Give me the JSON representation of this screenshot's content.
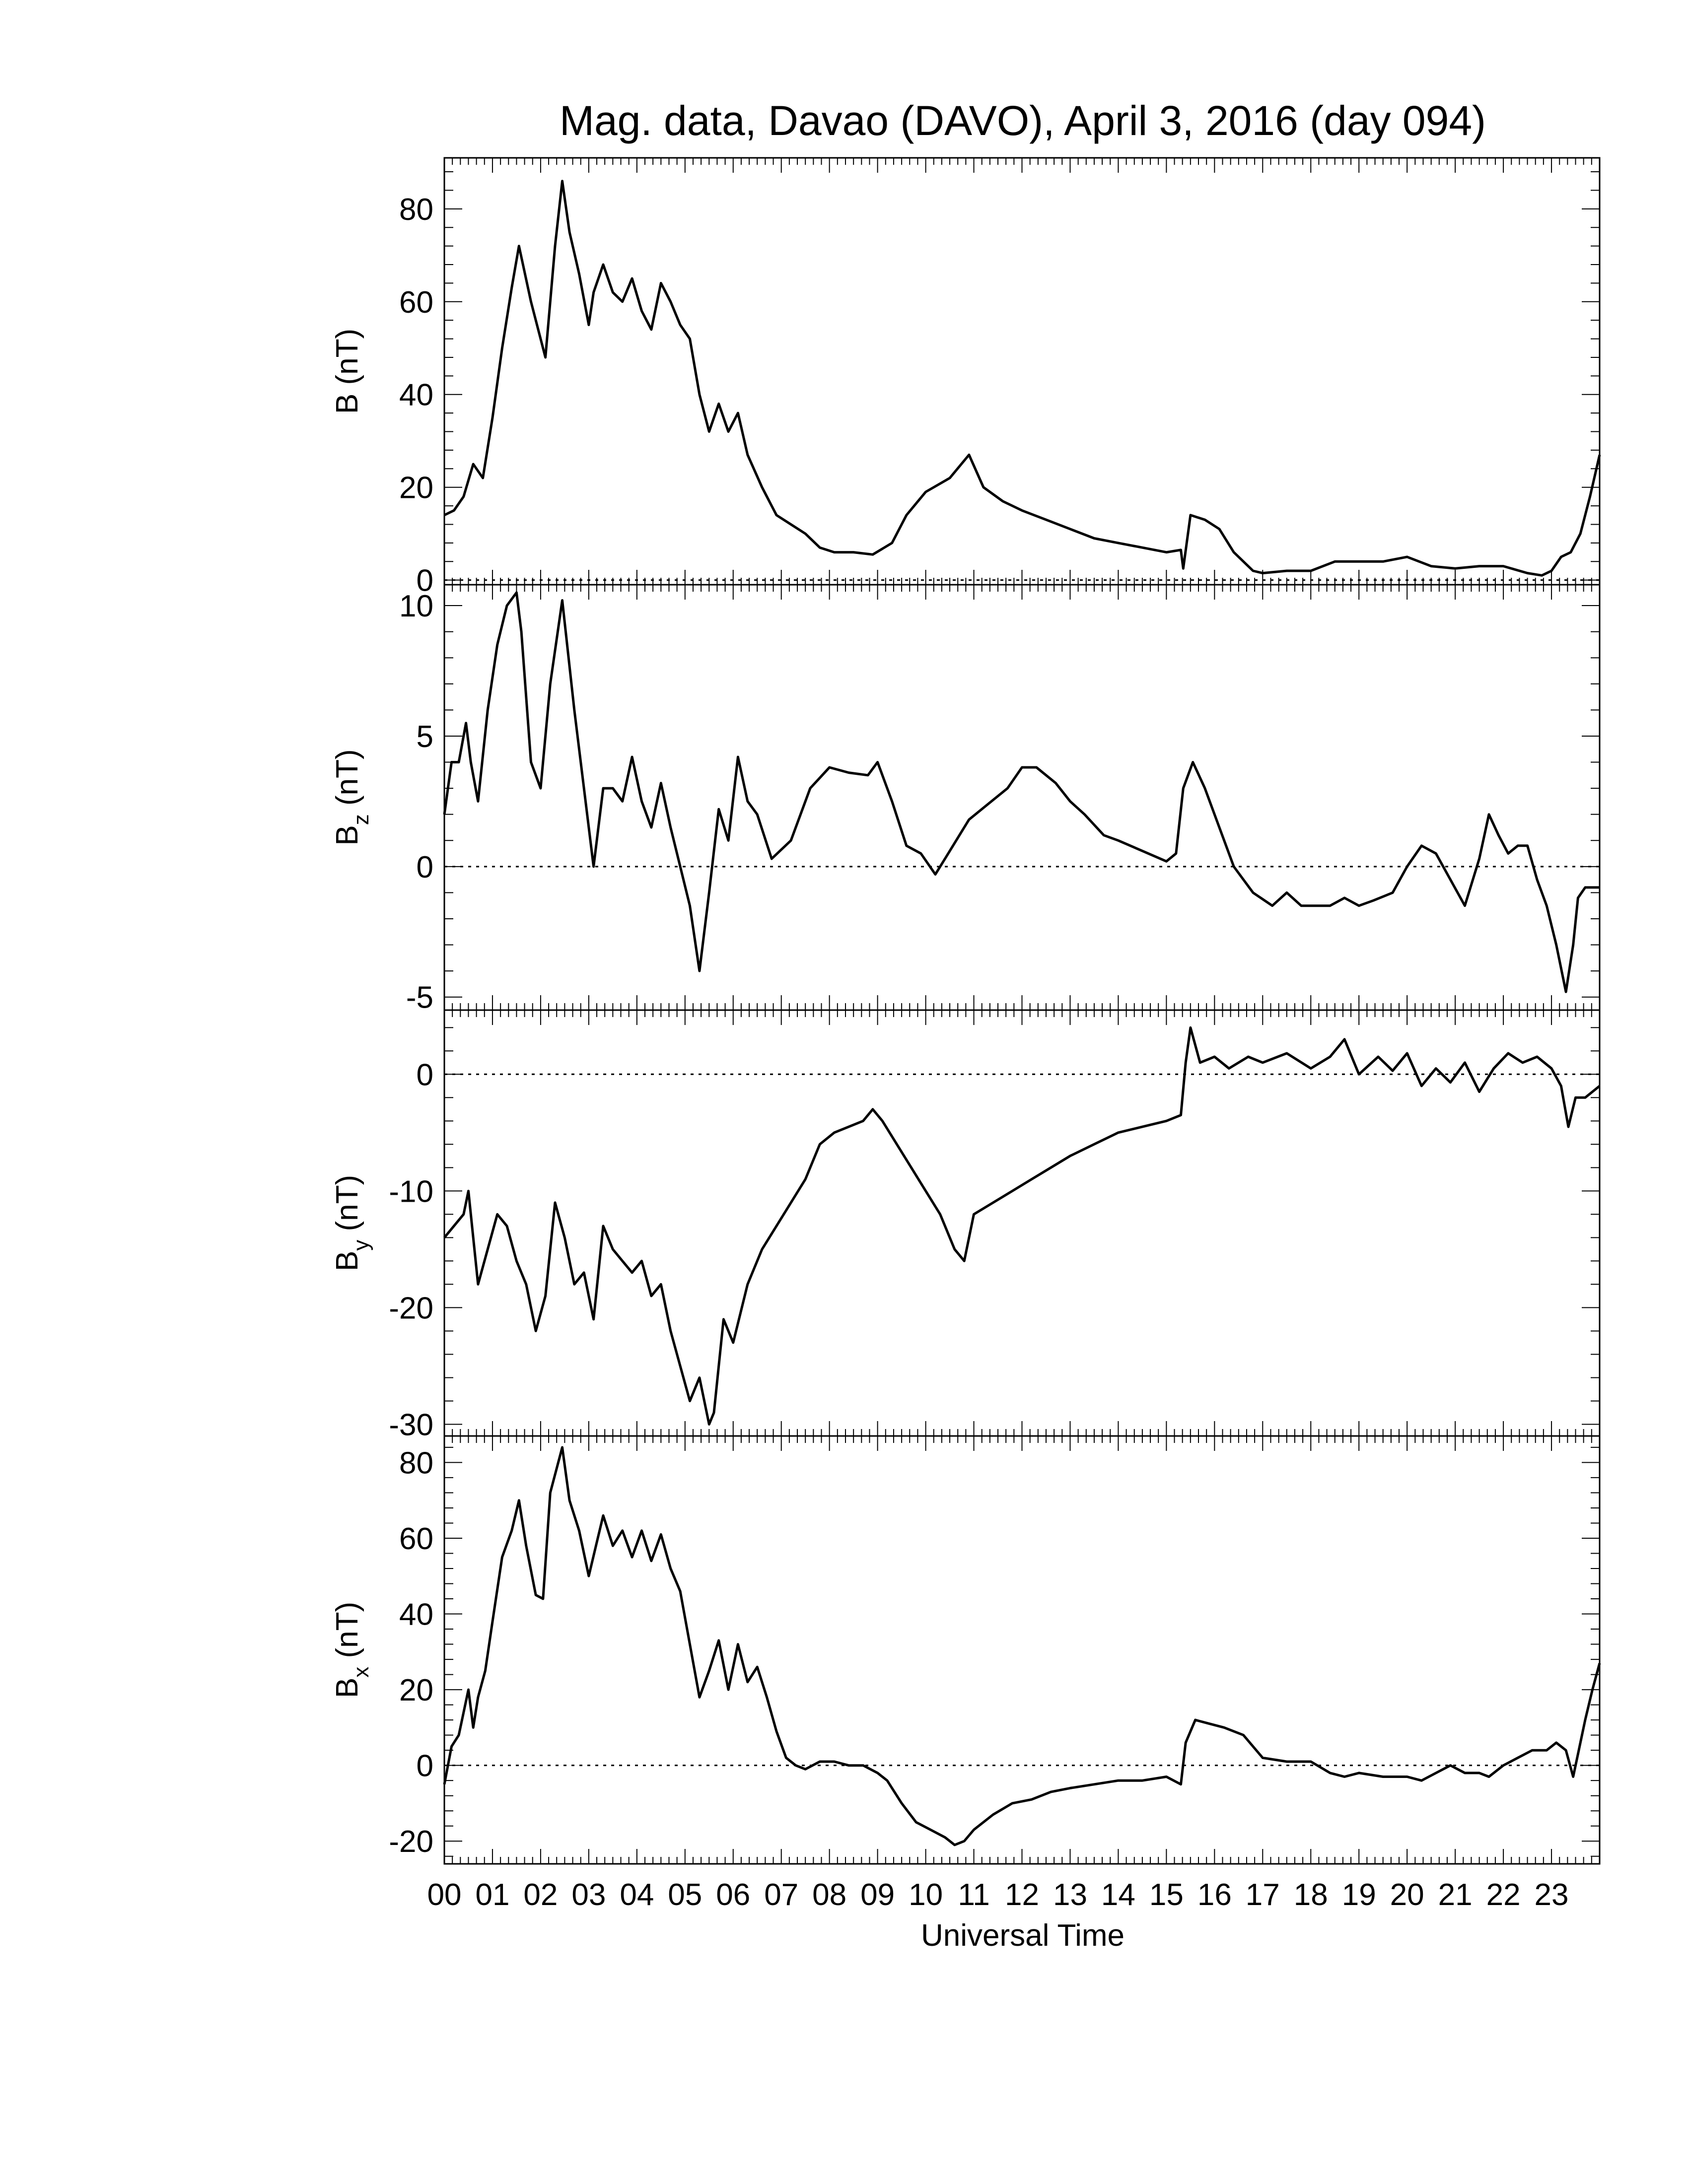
{
  "figure": {
    "title": "Mag. data, Davao (DAVO), April 3, 2016 (day 094)",
    "xlabel": "Universal Time",
    "x_tick_labels": [
      "00",
      "01",
      "02",
      "03",
      "04",
      "05",
      "06",
      "07",
      "08",
      "09",
      "10",
      "11",
      "12",
      "13",
      "14",
      "15",
      "16",
      "17",
      "18",
      "19",
      "20",
      "21",
      "22",
      "23"
    ]
  },
  "chart_data": [
    {
      "type": "line",
      "id": "B",
      "ylabel_main": "B",
      "ylabel_sub": "",
      "ylabel_unit": "(nT)",
      "ylim": [
        -1,
        91
      ],
      "yticks": [
        0,
        20,
        40,
        60,
        80
      ],
      "ytick_labels": [
        "0",
        "20",
        "40",
        "60",
        "80"
      ],
      "zero_line": true,
      "xlim": [
        0,
        24
      ],
      "x": [
        0,
        0.2,
        0.4,
        0.6,
        0.8,
        1.0,
        1.2,
        1.4,
        1.55,
        1.8,
        2.0,
        2.1,
        2.3,
        2.45,
        2.6,
        2.8,
        3.0,
        3.1,
        3.3,
        3.5,
        3.7,
        3.9,
        4.1,
        4.3,
        4.5,
        4.7,
        4.9,
        5.1,
        5.3,
        5.5,
        5.7,
        5.9,
        6.1,
        6.3,
        6.6,
        6.9,
        7.2,
        7.5,
        7.8,
        8.1,
        8.5,
        8.9,
        9.3,
        9.6,
        10.0,
        10.5,
        10.9,
        11.2,
        11.6,
        12.0,
        12.5,
        13.0,
        13.5,
        14.0,
        14.5,
        15.0,
        15.3,
        15.35,
        15.5,
        15.8,
        16.1,
        16.4,
        16.8,
        17.0,
        17.5,
        18.0,
        18.5,
        19.0,
        19.5,
        20.0,
        20.5,
        21.0,
        21.5,
        22.0,
        22.5,
        22.8,
        23.0,
        23.2,
        23.4,
        23.6,
        23.8,
        24.0
      ],
      "values": [
        14,
        15,
        18,
        25,
        22,
        35,
        50,
        63,
        72,
        60,
        52,
        48,
        72,
        86,
        75,
        66,
        55,
        62,
        68,
        62,
        60,
        65,
        58,
        54,
        64,
        60,
        55,
        52,
        40,
        32,
        38,
        32,
        36,
        27,
        20,
        14,
        12,
        10,
        7,
        6,
        6,
        5.5,
        8,
        14,
        19,
        22,
        27,
        20,
        17,
        15,
        13,
        11,
        9,
        8,
        7,
        6,
        6.5,
        2.5,
        14,
        13,
        11,
        6,
        2,
        1.5,
        2,
        2,
        4,
        4,
        4,
        5,
        3,
        2.5,
        3,
        3,
        1.5,
        1,
        2,
        5,
        6,
        10,
        18,
        27
      ]
    },
    {
      "type": "line",
      "id": "Bz",
      "ylabel_main": "B",
      "ylabel_sub": "z",
      "ylabel_unit": "(nT)",
      "ylim": [
        -5.5,
        10.8
      ],
      "yticks": [
        -5,
        0,
        5,
        10
      ],
      "ytick_labels": [
        "-5",
        "0",
        "5",
        "10"
      ],
      "zero_line": true,
      "xlim": [
        0,
        24
      ],
      "x": [
        0,
        0.15,
        0.3,
        0.45,
        0.55,
        0.7,
        0.9,
        1.1,
        1.3,
        1.5,
        1.6,
        1.8,
        2.0,
        2.2,
        2.45,
        2.7,
        2.9,
        3.1,
        3.3,
        3.5,
        3.7,
        3.9,
        4.1,
        4.3,
        4.5,
        4.7,
        4.9,
        5.1,
        5.3,
        5.5,
        5.7,
        5.9,
        6.1,
        6.3,
        6.5,
        6.8,
        7.2,
        7.6,
        8.0,
        8.4,
        8.8,
        9.0,
        9.3,
        9.6,
        9.9,
        10.2,
        10.5,
        10.9,
        11.3,
        11.7,
        12.0,
        12.3,
        12.7,
        13.0,
        13.3,
        13.7,
        14.0,
        14.5,
        15.0,
        15.2,
        15.35,
        15.55,
        15.8,
        16.1,
        16.4,
        16.8,
        17.2,
        17.5,
        17.8,
        18.1,
        18.4,
        18.7,
        19.0,
        19.3,
        19.7,
        20.0,
        20.3,
        20.6,
        20.9,
        21.2,
        21.5,
        21.7,
        21.9,
        22.1,
        22.3,
        22.5,
        22.7,
        22.9,
        23.1,
        23.3,
        23.45,
        23.55,
        23.7,
        23.85,
        24.0
      ],
      "values": [
        2,
        4,
        4,
        5.5,
        4,
        2.5,
        6,
        8.5,
        10,
        10.5,
        9,
        4,
        3,
        7,
        10.2,
        6,
        3,
        0,
        3,
        3,
        2.5,
        4.2,
        2.5,
        1.5,
        3.2,
        1.5,
        0,
        -1.5,
        -4,
        -1,
        2.2,
        1,
        4.2,
        2.5,
        2,
        0.3,
        1,
        3,
        3.8,
        3.6,
        3.5,
        4,
        2.5,
        0.8,
        0.5,
        -0.3,
        0.6,
        1.8,
        2.4,
        3,
        3.8,
        3.8,
        3.2,
        2.5,
        2,
        1.2,
        1,
        0.6,
        0.2,
        0.5,
        3,
        4,
        3,
        1.5,
        0,
        -1,
        -1.5,
        -1,
        -1.5,
        -1.5,
        -1.5,
        -1.2,
        -1.5,
        -1.3,
        -1,
        0,
        0.8,
        0.5,
        -0.5,
        -1.5,
        0.3,
        2,
        1.2,
        0.5,
        0.8,
        0.8,
        -0.5,
        -1.5,
        -3,
        -4.8,
        -3,
        -1.2,
        -0.8,
        -0.8,
        -0.8
      ]
    },
    {
      "type": "line",
      "id": "By",
      "ylabel_main": "B",
      "ylabel_sub": "y",
      "ylabel_unit": "(nT)",
      "ylim": [
        -31,
        5.5
      ],
      "yticks": [
        -30,
        -20,
        -10,
        0
      ],
      "ytick_labels": [
        "-30",
        "-20",
        "-10",
        "0"
      ],
      "zero_line": true,
      "xlim": [
        0,
        24
      ],
      "x": [
        0,
        0.2,
        0.4,
        0.5,
        0.7,
        0.9,
        1.1,
        1.3,
        1.5,
        1.7,
        1.9,
        2.1,
        2.3,
        2.5,
        2.7,
        2.9,
        3.1,
        3.3,
        3.5,
        3.7,
        3.9,
        4.1,
        4.3,
        4.5,
        4.7,
        4.9,
        5.1,
        5.3,
        5.5,
        5.6,
        5.8,
        6.0,
        6.3,
        6.6,
        6.9,
        7.2,
        7.5,
        7.8,
        8.1,
        8.4,
        8.7,
        8.9,
        9.1,
        9.4,
        9.7,
        10.0,
        10.3,
        10.6,
        10.8,
        11.0,
        11.4,
        11.8,
        12.2,
        12.6,
        13.0,
        13.5,
        14.0,
        14.5,
        15.0,
        15.3,
        15.4,
        15.5,
        15.7,
        16.0,
        16.3,
        16.7,
        17.0,
        17.5,
        18.0,
        18.4,
        18.7,
        19.0,
        19.4,
        19.7,
        20.0,
        20.3,
        20.6,
        20.9,
        21.2,
        21.5,
        21.8,
        22.1,
        22.4,
        22.7,
        23.0,
        23.2,
        23.35,
        23.5,
        23.7,
        24.0
      ],
      "values": [
        -14,
        -13,
        -12,
        -10,
        -18,
        -15,
        -12,
        -13,
        -16,
        -18,
        -22,
        -19,
        -11,
        -14,
        -18,
        -17,
        -21,
        -13,
        -15,
        -16,
        -17,
        -16,
        -19,
        -18,
        -22,
        -25,
        -28,
        -26,
        -30,
        -29,
        -21,
        -23,
        -18,
        -15,
        -13,
        -11,
        -9,
        -6,
        -5,
        -4.5,
        -4,
        -3,
        -4,
        -6,
        -8,
        -10,
        -12,
        -15,
        -16,
        -12,
        -11,
        -10,
        -9,
        -8,
        -7,
        -6,
        -5,
        -4.5,
        -4,
        -3.5,
        1,
        4,
        1,
        1.5,
        0.5,
        1.5,
        1,
        1.8,
        0.5,
        1.5,
        3,
        0,
        1.5,
        0.3,
        1.8,
        -1,
        0.5,
        -0.7,
        1,
        -1.5,
        0.5,
        1.8,
        1,
        1.5,
        0.5,
        -1,
        -4.5,
        -2,
        -2,
        -1
      ]
    },
    {
      "type": "line",
      "id": "Bx",
      "ylabel_main": "B",
      "ylabel_sub": "x",
      "ylabel_unit": "(nT)",
      "ylim": [
        -26,
        87
      ],
      "yticks": [
        -20,
        0,
        20,
        40,
        60,
        80
      ],
      "ytick_labels": [
        "-20",
        "0",
        "20",
        "40",
        "60",
        "80"
      ],
      "zero_line": true,
      "xlim": [
        0,
        24
      ],
      "x": [
        0,
        0.15,
        0.3,
        0.5,
        0.6,
        0.7,
        0.85,
        1.0,
        1.2,
        1.4,
        1.55,
        1.7,
        1.9,
        2.05,
        2.2,
        2.45,
        2.6,
        2.8,
        3.0,
        3.15,
        3.3,
        3.5,
        3.7,
        3.9,
        4.1,
        4.3,
        4.5,
        4.7,
        4.9,
        5.1,
        5.3,
        5.5,
        5.7,
        5.9,
        6.1,
        6.3,
        6.5,
        6.7,
        6.9,
        7.1,
        7.3,
        7.5,
        7.8,
        8.1,
        8.4,
        8.7,
        9.0,
        9.2,
        9.5,
        9.8,
        10.1,
        10.4,
        10.6,
        10.8,
        11.0,
        11.4,
        11.8,
        12.2,
        12.6,
        13.0,
        13.5,
        14.0,
        14.5,
        15.0,
        15.3,
        15.4,
        15.6,
        15.9,
        16.2,
        16.6,
        17.0,
        17.5,
        18.0,
        18.4,
        18.7,
        19.0,
        19.5,
        20.0,
        20.3,
        20.6,
        20.9,
        21.2,
        21.5,
        21.7,
        22.0,
        22.3,
        22.6,
        22.9,
        23.1,
        23.3,
        23.45,
        23.55,
        23.7,
        23.85,
        24.0
      ],
      "values": [
        -5,
        5,
        8,
        20,
        10,
        18,
        25,
        38,
        55,
        62,
        70,
        58,
        45,
        44,
        72,
        84,
        70,
        62,
        50,
        58,
        66,
        58,
        62,
        55,
        62,
        54,
        61,
        52,
        46,
        32,
        18,
        25,
        33,
        20,
        32,
        22,
        26,
        18,
        9,
        2,
        0,
        -1,
        1,
        1,
        0,
        0,
        -2,
        -4,
        -10,
        -15,
        -17,
        -19,
        -21,
        -20,
        -17,
        -13,
        -10,
        -9,
        -7,
        -6,
        -5,
        -4,
        -4,
        -3,
        -5,
        6,
        12,
        11,
        10,
        8,
        2,
        1,
        1,
        -2,
        -3,
        -2,
        -3,
        -3,
        -4,
        -2,
        0,
        -2,
        -2,
        -3,
        0,
        2,
        4,
        4,
        6,
        4,
        -3,
        3,
        12,
        20,
        27
      ]
    }
  ]
}
